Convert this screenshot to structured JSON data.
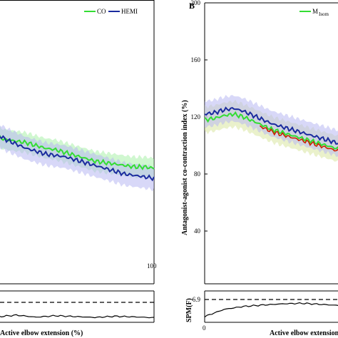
{
  "chart_data": [
    {
      "type": "line",
      "panel": "A",
      "title": "",
      "xlabel": "Active elbow extension (%)",
      "ylabel": "",
      "xlim": [
        0,
        100
      ],
      "ylim": [
        0,
        200
      ],
      "y_visible_range": [
        40,
        200
      ],
      "xticks": [
        "100"
      ],
      "legend": {
        "placement": "top-right",
        "entries": [
          "CO",
          "HEMI"
        ]
      },
      "colors": {
        "CO": "#33dd33",
        "HEMI": "#1a2b9e",
        "CO_band": "#aaf0aa",
        "HEMI_band": "#b8b8f2"
      },
      "x": [
        0,
        5,
        10,
        15,
        20,
        25,
        30,
        35,
        40,
        45,
        50,
        55,
        60,
        65,
        70,
        75,
        80,
        85,
        90,
        95,
        100
      ],
      "series": [
        {
          "name": "CO",
          "values": [
            111,
            110,
            109,
            108,
            106,
            104,
            103,
            102,
            100,
            98,
            97,
            95,
            93,
            91,
            89,
            88,
            87,
            86,
            85,
            85,
            84
          ],
          "band_halfwidth": 7
        },
        {
          "name": "HEMI",
          "values": [
            122,
            119,
            116,
            112,
            108,
            104,
            101,
            98,
            96,
            94,
            93,
            92,
            90,
            88,
            86,
            84,
            82,
            80,
            79,
            78,
            77
          ],
          "band_halfwidth": 8
        }
      ]
    },
    {
      "type": "line",
      "panel": "B",
      "title": "",
      "xlabel": "Active elbow extension",
      "ylabel": "Antagonist-agonist co-contraction index (%)",
      "xlim": [
        0,
        100
      ],
      "ylim": [
        0,
        200
      ],
      "yticks": [
        40,
        80,
        120,
        160,
        200
      ],
      "xticks": [
        "0"
      ],
      "legend": {
        "placement": "top-right",
        "entries": [
          "M"
        ],
        "subscript": "Isom"
      },
      "colors": {
        "M": "#33dd33",
        "HEMI": "#1a2b9e",
        "diff": "#cc2200",
        "CO_band": "#d8e6a0",
        "HEMI_band": "#b8b8f2"
      },
      "x": [
        0,
        5,
        10,
        15,
        20,
        25,
        30,
        35,
        40,
        45,
        50,
        55,
        60,
        65,
        70,
        75,
        80,
        85,
        90,
        95,
        100
      ],
      "series": [
        {
          "name": "",
          "values": [
            118,
            119,
            121,
            122,
            120,
            117,
            114,
            111,
            109,
            107,
            105,
            103,
            101,
            99,
            97,
            95,
            93,
            92,
            91,
            90,
            90
          ],
          "band_halfwidth": 9
        },
        {
          "name": "",
          "values": [
            122,
            123,
            125,
            126,
            124,
            121,
            118,
            115,
            113,
            111,
            109,
            107,
            105,
            103,
            101,
            99,
            97,
            96,
            95,
            94,
            94
          ],
          "band_halfwidth": 9
        }
      ],
      "highlight_x_range": [
        28,
        72
      ]
    }
  ],
  "spm_panels": [
    {
      "panel": "A",
      "ylabel": "",
      "threshold_label": "",
      "x": [
        0,
        10,
        20,
        30,
        40,
        50,
        60,
        70,
        80,
        90,
        100
      ],
      "values": [
        0.5,
        1.2,
        0.9,
        1.5,
        0.8,
        1.3,
        1.0,
        0.7,
        1.1,
        0.9,
        0.6
      ]
    },
    {
      "panel": "B",
      "ylabel": "SPM(F)",
      "threshold_label": "6.9",
      "x": [
        0,
        10,
        20,
        30,
        40,
        50,
        60,
        70,
        80,
        90,
        100
      ],
      "values": [
        1.0,
        3.5,
        4.5,
        5.0,
        5.4,
        5.6,
        5.2,
        4.8,
        4.3,
        3.8,
        3.2
      ]
    }
  ],
  "texts": {
    "panelA_legend_co": "CO",
    "panelA_legend_hemi": "HEMI",
    "panelA_xlabel": "Active elbow extension (%)",
    "panelA_xtick_end": "100",
    "panelB_letter": "B",
    "panelB_legend_main": "M",
    "panelB_legend_sub": "Isom",
    "panelB_ylabel": "Antagonist-agonist co-contraction index (%)",
    "panelB_xlabel": "Active elbow extension",
    "panelB_xtick_0": "0",
    "panelB_spm_ylabel": "SPM(F)",
    "panelB_spm_threshold": "6.9",
    "panelB_ytick_200": "200",
    "panelB_ytick_160": "160",
    "panelB_ytick_120": "120",
    "panelB_ytick_80": "80",
    "panelB_ytick_40": "40"
  }
}
